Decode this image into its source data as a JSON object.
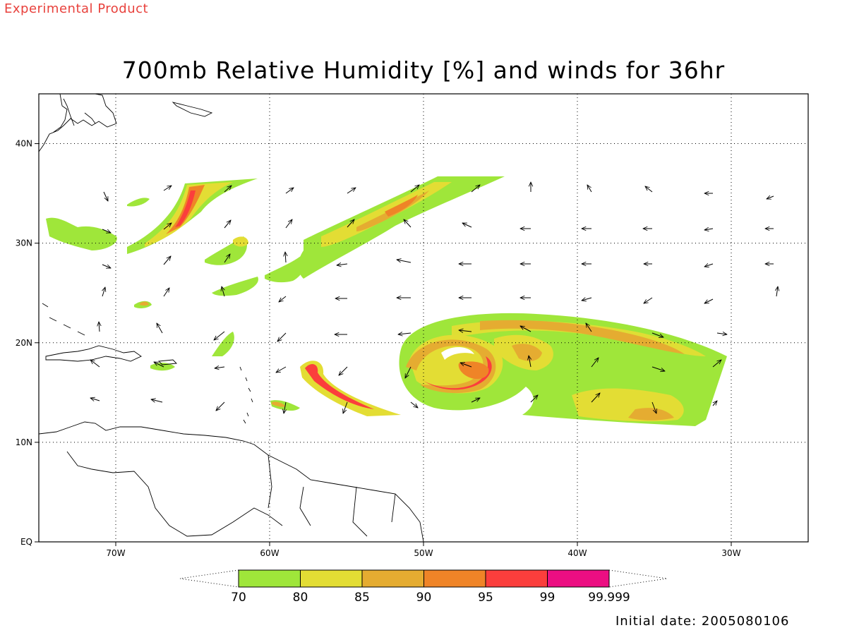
{
  "header": {
    "banner": "Experimental Product",
    "title": "700mb Relative Humidity [%] and winds for 36hr"
  },
  "footer": {
    "initial_date": "Initial date: 2005080106"
  },
  "map": {
    "lon_range": [
      -75,
      -25
    ],
    "lat_range": [
      0,
      45
    ],
    "lon_ticks": [
      {
        "lon": -70,
        "label": "70W"
      },
      {
        "lon": -60,
        "label": "60W"
      },
      {
        "lon": -50,
        "label": "50W"
      },
      {
        "lon": -40,
        "label": "40W"
      },
      {
        "lon": -30,
        "label": "30W"
      }
    ],
    "lat_ticks": [
      {
        "lat": 0,
        "label": "EQ"
      },
      {
        "lat": 10,
        "label": "10N"
      },
      {
        "lat": 20,
        "label": "20N"
      },
      {
        "lat": 30,
        "label": "30N"
      },
      {
        "lat": 40,
        "label": "40N"
      }
    ],
    "gridlines": "dotted"
  },
  "colorbar": {
    "colors": [
      "#9fe63a",
      "#e3dd34",
      "#e5ac31",
      "#ef8427",
      "#fb3e3c",
      "#ec0e82"
    ],
    "labels": [
      "70",
      "80",
      "85",
      "90",
      "95",
      "99",
      "99.999"
    ]
  }
}
